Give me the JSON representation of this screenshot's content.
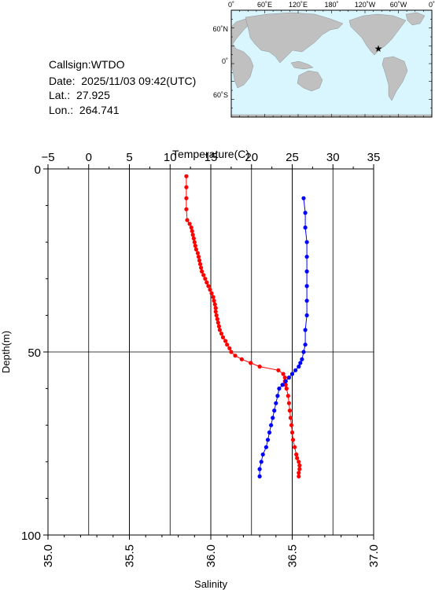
{
  "info": {
    "callsign_label": "Callsign:",
    "callsign": "WTDO",
    "date_label": "Date:",
    "date": "2025/11/03 09:42(UTC)",
    "lat_label": "Lat.:",
    "lat": "27.925",
    "lon_label": "Lon.:",
    "lon": "264.741"
  },
  "map": {
    "top_labels": [
      "0˚",
      "60˚E",
      "120˚E",
      "180˚",
      "120˚W",
      "60˚W",
      "0˚"
    ],
    "left_labels": [
      "60˚N",
      "0˚",
      "60˚S"
    ],
    "ocean_color": "#d9f6ff",
    "land_color": "#c0c0c0",
    "marker": "star-icon",
    "marker_color": "#ff0000"
  },
  "chart_data": {
    "type": "line",
    "title": "",
    "top_axis": {
      "label": "Temperature(C)",
      "range": [
        -5,
        35
      ],
      "ticks": [
        "−5",
        "0",
        "5",
        "10",
        "15",
        "20",
        "25",
        "30",
        "35"
      ],
      "tick_values": [
        -5,
        0,
        5,
        10,
        15,
        20,
        25,
        30,
        35
      ]
    },
    "bottom_axis": {
      "label": "Salinity",
      "range": [
        35.0,
        37.0
      ],
      "ticks": [
        "35.0",
        "35.5",
        "36.0",
        "36.5",
        "37.0"
      ],
      "tick_values": [
        35.0,
        35.5,
        36.0,
        36.5,
        37.0
      ]
    },
    "y_axis": {
      "label": "Depth(m)",
      "range": [
        0,
        100
      ],
      "inverted": true,
      "ticks": [
        "0",
        "50",
        "100"
      ],
      "tick_values": [
        0,
        50,
        100
      ]
    },
    "grid": true,
    "series": [
      {
        "axis": "top",
        "color": "#ff0000",
        "depth": [
          2,
          5,
          8,
          11,
          14,
          15,
          16,
          17,
          18,
          19,
          20,
          21,
          22,
          23,
          24,
          25,
          26,
          27,
          28,
          29,
          30,
          31,
          32,
          33,
          34,
          35,
          36,
          37,
          38,
          39,
          40,
          41,
          42,
          43,
          44,
          45,
          46,
          47,
          48,
          49,
          50,
          51,
          52,
          53,
          54,
          55,
          56,
          57,
          58,
          59,
          60,
          62,
          64,
          66,
          68,
          70,
          72,
          74,
          76,
          78,
          79,
          80,
          81,
          82,
          83,
          84
        ],
        "values": [
          12.0,
          12.0,
          12.0,
          12.0,
          12.1,
          12.4,
          12.6,
          12.7,
          12.8,
          12.9,
          13.0,
          13.1,
          13.2,
          13.4,
          13.5,
          13.6,
          13.7,
          13.8,
          13.9,
          14.1,
          14.3,
          14.5,
          14.7,
          14.9,
          15.1,
          15.3,
          15.4,
          15.5,
          15.6,
          15.6,
          15.7,
          15.8,
          15.9,
          16.0,
          16.1,
          16.3,
          16.5,
          16.8,
          17.0,
          17.3,
          17.5,
          18.0,
          18.8,
          19.9,
          21.0,
          23.3,
          23.9,
          24.1,
          24.1,
          24.2,
          24.3,
          24.5,
          24.6,
          24.7,
          24.8,
          24.9,
          25.0,
          25.1,
          25.3,
          25.5,
          25.6,
          25.8,
          25.9,
          25.9,
          25.8,
          25.8
        ]
      },
      {
        "axis": "bottom",
        "color": "#0000ff",
        "depth": [
          8,
          12,
          16,
          20,
          24,
          28,
          32,
          36,
          40,
          44,
          48,
          50,
          52,
          53,
          54,
          55,
          56,
          57,
          58,
          59,
          60,
          62,
          64,
          66,
          68,
          70,
          72,
          74,
          76,
          78,
          80,
          82,
          84
        ],
        "values": [
          36.57,
          36.58,
          36.58,
          36.59,
          36.59,
          36.59,
          36.59,
          36.59,
          36.59,
          36.58,
          36.58,
          36.57,
          36.56,
          36.55,
          36.54,
          36.52,
          36.5,
          36.48,
          36.46,
          36.44,
          36.42,
          36.41,
          36.4,
          36.39,
          36.38,
          36.37,
          36.36,
          36.35,
          36.34,
          36.32,
          36.31,
          36.3,
          36.3
        ]
      }
    ]
  }
}
